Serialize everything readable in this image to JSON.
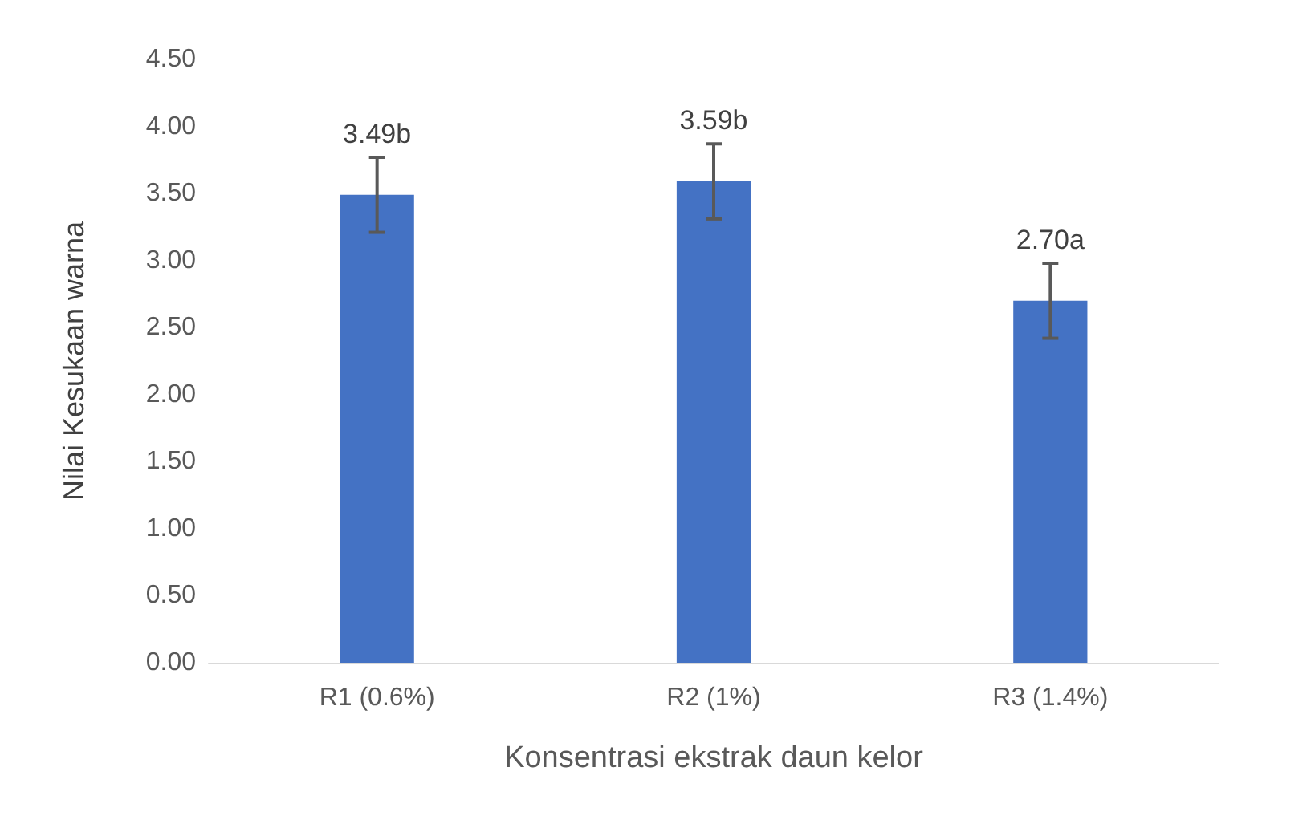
{
  "chart_data": {
    "type": "bar",
    "xlabel": "Konsentrasi ekstrak daun kelor",
    "ylabel": "Nilai Kesukaan warna",
    "categories": [
      "R1 (0.6%)",
      "R2 (1%)",
      "R3 (1.4%)"
    ],
    "values": [
      3.49,
      3.59,
      2.7
    ],
    "color": "#4472c4",
    "errors": [
      0.28,
      0.28,
      0.28
    ],
    "value_labels": [
      "3.49b",
      "3.59b",
      "2.70a"
    ],
    "ylim": [
      0,
      4.5
    ],
    "yticks": [
      {
        "value": 0,
        "label": "0.00"
      },
      {
        "value": 0.5,
        "label": "0.50"
      },
      {
        "value": 1,
        "label": "1.00"
      },
      {
        "value": 1.5,
        "label": "1.50"
      },
      {
        "value": 2,
        "label": "2.00"
      },
      {
        "value": 2.5,
        "label": "2.50"
      },
      {
        "value": 3,
        "label": "3.00"
      },
      {
        "value": 3.5,
        "label": "3.50"
      },
      {
        "value": 4,
        "label": "4.00"
      },
      {
        "value": 4.5,
        "label": "4.50"
      }
    ],
    "grid": false
  }
}
